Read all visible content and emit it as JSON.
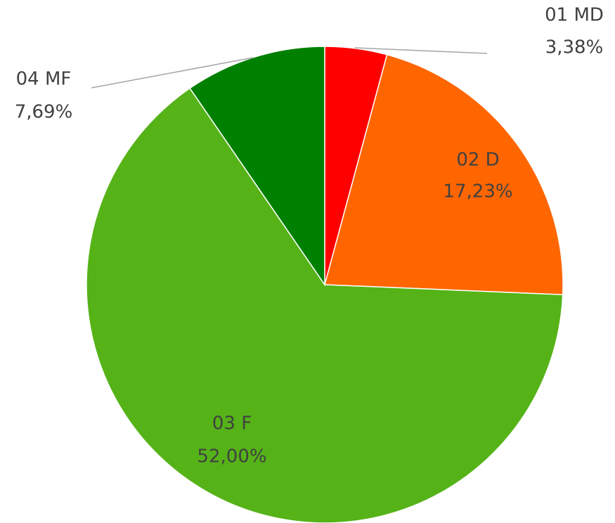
{
  "chart_data": {
    "type": "pie",
    "categories": [
      "01 MD",
      "02 D",
      "03 F",
      "04 MF"
    ],
    "values": [
      3.38,
      17.23,
      52.0,
      7.69
    ],
    "value_labels": [
      "3,38%",
      "17,23%",
      "52,00%",
      "7,69%"
    ],
    "colors": [
      "#ff0000",
      "#ff6600",
      "#55b318",
      "#008000"
    ]
  }
}
